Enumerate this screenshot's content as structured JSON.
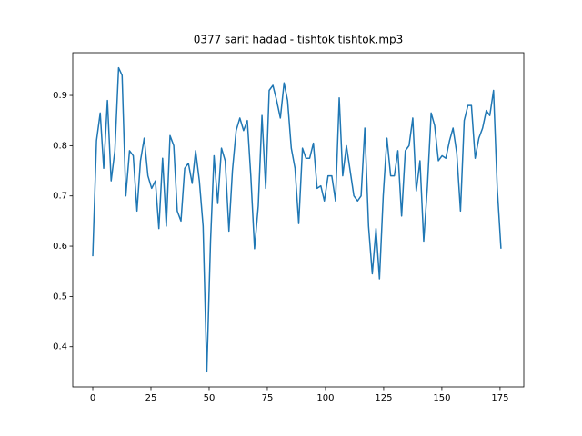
{
  "chart_data": {
    "type": "line",
    "title": "0377 sarit hadad - tishtok tishtok.mp3",
    "x": [
      0,
      1.6,
      3.2,
      4.7,
      6.3,
      7.9,
      9.5,
      11.1,
      12.6,
      14.2,
      15.8,
      17.4,
      19.0,
      20.5,
      22.1,
      23.7,
      25.3,
      26.9,
      28.4,
      30.0,
      31.6,
      33.2,
      34.8,
      36.3,
      37.9,
      39.5,
      41.1,
      42.7,
      44.2,
      45.8,
      47.4,
      49.0,
      50.6,
      52.1,
      53.7,
      55.3,
      56.9,
      58.5,
      60.0,
      61.6,
      63.2,
      64.8,
      66.4,
      67.9,
      69.5,
      71.1,
      72.7,
      74.3,
      75.8,
      77.4,
      79.0,
      80.6,
      82.2,
      83.7,
      85.3,
      86.9,
      88.5,
      90.1,
      91.6,
      93.2,
      94.8,
      96.4,
      98.0,
      99.5,
      101.1,
      102.7,
      104.3,
      105.9,
      107.4,
      109.0,
      110.6,
      112.2,
      113.8,
      115.3,
      116.9,
      118.5,
      120.1,
      121.7,
      123.2,
      124.8,
      126.4,
      128.0,
      129.6,
      131.1,
      132.7,
      134.3,
      135.9,
      137.5,
      139.0,
      140.6,
      142.2,
      143.8,
      145.4,
      146.9,
      148.5,
      150.1,
      151.7,
      153.3,
      154.8,
      156.4,
      158.0,
      159.6,
      161.2,
      162.7,
      164.3,
      165.9,
      167.5,
      169.1,
      170.6,
      172.2,
      173.8,
      175.4
    ],
    "values": [
      0.58,
      0.81,
      0.865,
      0.755,
      0.89,
      0.73,
      0.79,
      0.955,
      0.94,
      0.7,
      0.79,
      0.78,
      0.67,
      0.77,
      0.815,
      0.74,
      0.715,
      0.73,
      0.635,
      0.775,
      0.64,
      0.82,
      0.8,
      0.67,
      0.65,
      0.755,
      0.765,
      0.725,
      0.79,
      0.73,
      0.64,
      0.35,
      0.61,
      0.78,
      0.685,
      0.795,
      0.77,
      0.63,
      0.75,
      0.83,
      0.855,
      0.83,
      0.85,
      0.74,
      0.595,
      0.68,
      0.86,
      0.715,
      0.91,
      0.92,
      0.89,
      0.855,
      0.925,
      0.89,
      0.795,
      0.755,
      0.645,
      0.795,
      0.775,
      0.775,
      0.805,
      0.715,
      0.72,
      0.69,
      0.74,
      0.74,
      0.69,
      0.895,
      0.74,
      0.8,
      0.75,
      0.7,
      0.69,
      0.7,
      0.835,
      0.64,
      0.545,
      0.635,
      0.535,
      0.7,
      0.815,
      0.74,
      0.74,
      0.79,
      0.66,
      0.79,
      0.8,
      0.855,
      0.71,
      0.77,
      0.61,
      0.72,
      0.865,
      0.84,
      0.77,
      0.78,
      0.775,
      0.81,
      0.835,
      0.785,
      0.67,
      0.85,
      0.88,
      0.88,
      0.775,
      0.815,
      0.835,
      0.87,
      0.86,
      0.91,
      0.715,
      0.595
    ],
    "color": "#1f77b4",
    "xlim": [
      -8.6,
      185.2
    ],
    "xticks": [
      0,
      25,
      50,
      75,
      100,
      125,
      150,
      175
    ],
    "ylim": [
      0.32,
      0.985
    ],
    "yticks": [
      0.4,
      0.5,
      0.6,
      0.7,
      0.8,
      0.9
    ]
  }
}
